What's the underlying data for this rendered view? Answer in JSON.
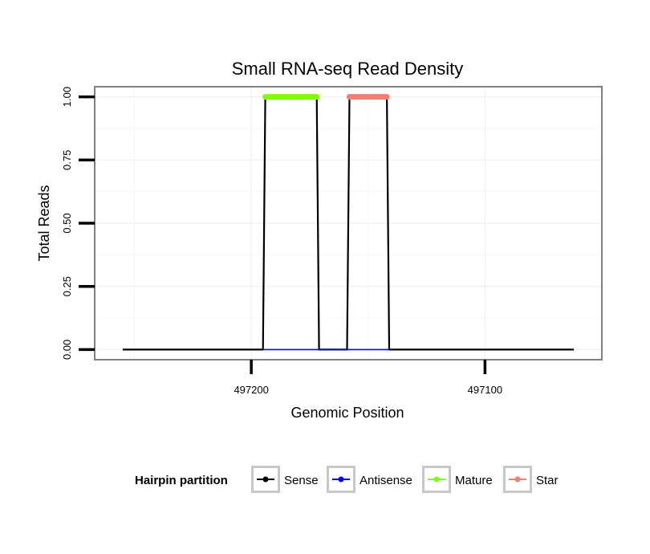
{
  "chart_data": {
    "type": "line",
    "title": "Small RNA-seq Read Density",
    "xlabel": "Genomic Position",
    "ylabel": "Total Reads",
    "x_reversed": true,
    "xlim": [
      497267,
      497050
    ],
    "ylim": [
      -0.04,
      1.04
    ],
    "xticks": [
      497200,
      497100
    ],
    "xtick_labels": [
      "497200",
      "497100"
    ],
    "yticks": [
      0,
      0.25,
      0.5,
      0.75,
      1
    ],
    "ytick_labels": [
      "0.00",
      "0.25",
      "0.50",
      "0.75",
      "1.00"
    ],
    "grid": true,
    "legend": {
      "title": "Hairpin partition",
      "placement": "bottom",
      "entries": [
        {
          "label": "Sense",
          "color": "#000000"
        },
        {
          "label": "Antisense",
          "color": "#0000FF"
        },
        {
          "label": "Mature",
          "color": "#7FFF00"
        },
        {
          "label": "Star",
          "color": "#F08070"
        }
      ]
    },
    "series": [
      {
        "name": "Sense",
        "color": "#000000",
        "points": [
          [
            497255,
            0
          ],
          [
            497195,
            0
          ],
          [
            497194,
            1
          ],
          [
            497172,
            1
          ],
          [
            497171,
            0
          ],
          [
            497159,
            0
          ],
          [
            497158,
            1
          ],
          [
            497142,
            1
          ],
          [
            497141,
            0
          ],
          [
            497062,
            0
          ]
        ]
      },
      {
        "name": "Antisense",
        "color": "#0000FF",
        "points": [
          [
            497195,
            0
          ],
          [
            497171,
            0
          ],
          [
            497159,
            0
          ],
          [
            497141,
            0
          ]
        ]
      },
      {
        "name": "Mature",
        "color": "#7FFF00",
        "points": [
          [
            497194,
            1
          ],
          [
            497172,
            1
          ]
        ]
      },
      {
        "name": "Star",
        "color": "#F08070",
        "points": [
          [
            497158,
            1
          ],
          [
            497142,
            1
          ]
        ]
      }
    ]
  }
}
